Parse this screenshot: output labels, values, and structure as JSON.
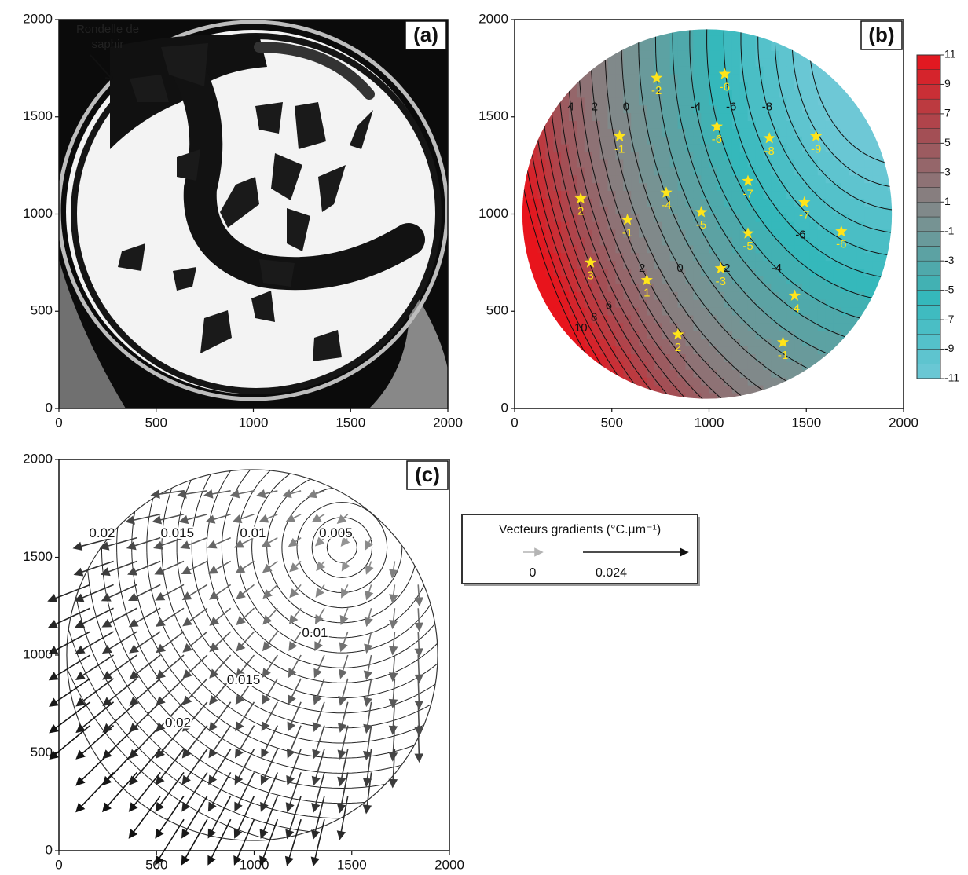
{
  "chart_data": [
    {
      "type": "image",
      "label": "(a)",
      "annotation": [
        "Rondelle de",
        "saphir"
      ],
      "xlim": [
        0,
        2000
      ],
      "ylim": [
        0,
        2000
      ],
      "xticks": [
        0,
        500,
        1000,
        1500,
        2000
      ],
      "yticks": [
        0,
        500,
        1000,
        1500,
        2000
      ]
    },
    {
      "type": "contour",
      "label": "(b)",
      "xlim": [
        0,
        2000
      ],
      "ylim": [
        0,
        2000
      ],
      "xticks": [
        0,
        500,
        1000,
        1500,
        2000
      ],
      "yticks": [
        0,
        500,
        1000,
        1500,
        2000
      ],
      "points": {
        "color": "#ffe41a",
        "x": [
          730,
          1080,
          540,
          1040,
          1310,
          1550,
          340,
          780,
          1200,
          580,
          960,
          1490,
          1200,
          1680,
          390,
          680,
          1060,
          1440,
          840,
          1380
        ],
        "y": [
          1700,
          1720,
          1400,
          1450,
          1390,
          1400,
          1080,
          1110,
          1170,
          970,
          1010,
          1060,
          900,
          910,
          750,
          660,
          720,
          580,
          380,
          340
        ],
        "values": [
          -2,
          -6,
          -1,
          -6,
          -8,
          -9,
          2,
          -4,
          -7,
          -1,
          -5,
          -7,
          -5,
          -6,
          3,
          1,
          -3,
          -4,
          2,
          -1
        ]
      },
      "contour_labels": [
        4,
        2,
        0,
        -4,
        -6,
        -8,
        -6,
        -4,
        -2,
        0,
        2,
        6,
        8,
        10
      ],
      "colorbar": {
        "lim": [
          -11,
          11
        ],
        "ticks": [
          11,
          9,
          7,
          5,
          3,
          1,
          -1,
          -3,
          -5,
          -7,
          -9,
          -11
        ],
        "colors": [
          "#6ec8d6",
          "#35b8bb",
          "#7d8f8f",
          "#a34f55",
          "#e8141c"
        ]
      }
    },
    {
      "type": "vector",
      "label": "(c)",
      "xlim": [
        0,
        2000
      ],
      "ylim": [
        0,
        2000
      ],
      "xticks": [
        0,
        500,
        1000,
        1500,
        2000
      ],
      "yticks": [
        0,
        500,
        1000,
        1500,
        2000
      ],
      "contour_labels": [
        0.02,
        0.015,
        0.01,
        0.005,
        0.01,
        0.015,
        0.02
      ],
      "legend": {
        "title": "Vecteurs gradients (°C.µm⁻¹)",
        "scale": [
          0,
          0.024
        ],
        "colors": [
          "#b4b4b4",
          "#111111"
        ]
      }
    }
  ]
}
